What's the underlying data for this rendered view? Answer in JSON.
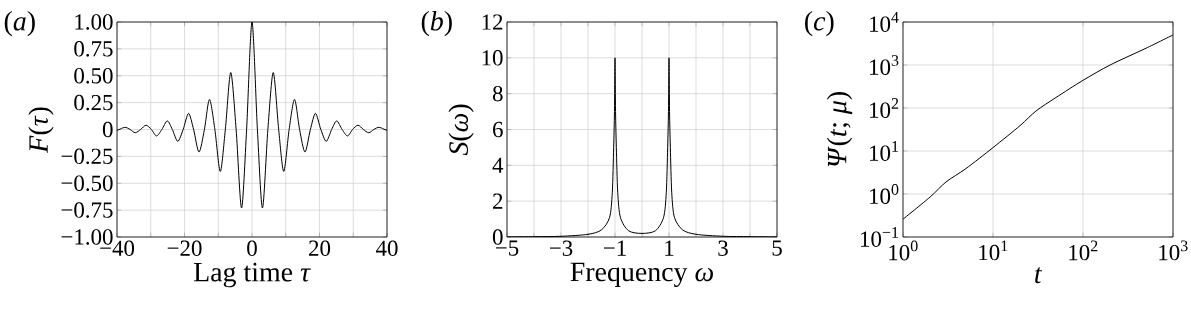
{
  "chart_data": [
    {
      "type": "line",
      "title": "(*a*)",
      "xlabel": "Lag time *τ*",
      "ylabel": "*F*(*τ*)",
      "color": "#000000",
      "grid": true,
      "x": [
        -40,
        -37.7,
        -36.1,
        -34.6,
        -33.0,
        -31.4,
        -29.8,
        -28.3,
        -26.7,
        -25.1,
        -23.6,
        -22.0,
        -20.4,
        -18.8,
        -17.3,
        -15.7,
        -14.1,
        -12.6,
        -11.0,
        -9.4,
        -7.9,
        -6.3,
        -4.7,
        -3.1,
        -1.6,
        0,
        1.6,
        3.1,
        4.7,
        6.3,
        7.9,
        9.4,
        11.0,
        12.6,
        14.1,
        15.7,
        17.3,
        18.8,
        20.4,
        22.0,
        23.6,
        25.1,
        26.7,
        28.3,
        29.8,
        31.4,
        33.0,
        34.6,
        36.1,
        37.7,
        40
      ],
      "values": [
        -0.01,
        0.02,
        0,
        -0.03,
        0,
        0.04,
        0,
        -0.06,
        0,
        0.08,
        0,
        -0.11,
        0,
        0.15,
        0,
        -0.21,
        0,
        0.28,
        0,
        -0.39,
        0,
        0.53,
        0,
        -0.73,
        0,
        1.0,
        0,
        -0.73,
        0,
        0.53,
        0,
        -0.39,
        0,
        0.28,
        0,
        -0.21,
        0,
        0.15,
        0,
        -0.11,
        0,
        0.08,
        0,
        -0.06,
        0,
        0.04,
        0,
        -0.03,
        0,
        0.02,
        -0.01
      ],
      "xlim": [
        -40,
        40
      ],
      "ylim": [
        -1,
        1
      ],
      "xticks": [
        {
          "value": -40,
          "label": "−40"
        },
        {
          "value": -30,
          "label": null
        },
        {
          "value": -20,
          "label": "−20"
        },
        {
          "value": -10,
          "label": null
        },
        0,
        {
          "value": 10,
          "label": null
        },
        20,
        {
          "value": 30,
          "label": null
        },
        40
      ],
      "yticks": [
        {
          "value": -1,
          "label": "−1.00"
        },
        {
          "value": -0.75,
          "label": "−0.75"
        },
        {
          "value": -0.5,
          "label": "−0.50"
        },
        {
          "value": -0.25,
          "label": "−0.25"
        },
        0,
        {
          "value": 0.25,
          "label": "0.25"
        },
        {
          "value": 0.5,
          "label": "0.50"
        },
        {
          "value": 0.75,
          "label": "0.75"
        },
        {
          "value": 1,
          "label": "1.00"
        }
      ]
    },
    {
      "type": "line",
      "title": "(*b*)",
      "xlabel": "Frequency *ω*",
      "ylabel": "*S*(*ω*)",
      "color": "#000000",
      "grid": true,
      "x": [
        -5,
        -4,
        -3,
        -2,
        -1.5,
        -1.2,
        -1.1,
        -1.05,
        -1.02,
        -1,
        -0.98,
        -0.95,
        -0.9,
        -0.8,
        -0.5,
        0,
        0.5,
        0.8,
        0.9,
        0.95,
        0.98,
        1,
        1.02,
        1.05,
        1.1,
        1.2,
        1.5,
        2,
        3,
        4,
        5
      ],
      "values": [
        0.01,
        0.02,
        0.04,
        0.15,
        0.4,
        1.1,
        2.5,
        5,
        7,
        10,
        7,
        5,
        2.5,
        1.1,
        0.35,
        0.2,
        0.35,
        1.1,
        2.5,
        5,
        7,
        10,
        7,
        5,
        2.5,
        1.1,
        0.4,
        0.15,
        0.04,
        0.02,
        0.01
      ],
      "xlim": [
        -5,
        5
      ],
      "ylim": [
        0,
        12
      ],
      "xticks": [
        {
          "value": -5,
          "label": "−5"
        },
        {
          "value": -4,
          "label": null
        },
        {
          "value": -3,
          "label": "−3"
        },
        {
          "value": -2,
          "label": null
        },
        {
          "value": -1,
          "label": "−1"
        },
        {
          "value": 0,
          "label": null
        },
        1,
        {
          "value": 2,
          "label": null
        },
        3,
        {
          "value": 4,
          "label": null
        },
        5
      ],
      "yticks": [
        0,
        2,
        4,
        6,
        8,
        10,
        12
      ]
    },
    {
      "type": "line",
      "title": "(*c*)",
      "xlabel": "*t*",
      "ylabel": "*Ψ*(*t*; *μ*)",
      "color": "#000000",
      "grid": true,
      "log": "xy",
      "x": [
        1,
        2,
        3,
        5,
        10,
        20,
        30,
        50,
        100,
        200,
        500,
        1000
      ],
      "values": [
        0.26,
        0.85,
        1.9,
        3.9,
        12,
        39,
        85,
        175,
        440,
        1000,
        2450,
        5000
      ],
      "xlim": [
        1,
        1000
      ],
      "ylim": [
        0.1,
        10000
      ],
      "xticks": [
        {
          "value": 1,
          "label": "10$^{0}$"
        },
        {
          "value": 10,
          "label": "10$^{1}$"
        },
        {
          "value": 100,
          "label": "10$^{2}$"
        },
        {
          "value": 1000,
          "label": "10$^{3}$"
        }
      ],
      "yticks": [
        {
          "value": 0.1,
          "label": "10$^{−1}$"
        },
        {
          "value": 1,
          "label": "10$^{0}$"
        },
        {
          "value": 10,
          "label": "10$^{1}$"
        },
        {
          "value": 100,
          "label": "10$^{2}$"
        },
        {
          "value": 1000,
          "label": "10$^{3}$"
        },
        {
          "value": 10000,
          "label": "10$^{4}$"
        }
      ]
    }
  ]
}
